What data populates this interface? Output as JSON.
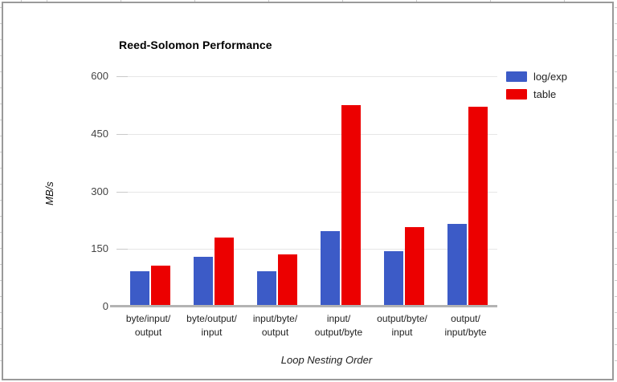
{
  "chart_data": {
    "type": "bar",
    "title": "Reed-Solomon Performance",
    "xlabel": "Loop Nesting Order",
    "ylabel": "MB/s",
    "ylim": [
      0,
      600
    ],
    "yticks": [
      0,
      150,
      300,
      450,
      600
    ],
    "grid": true,
    "legend_position": "right-top",
    "categories": [
      [
        "byte/input/",
        "output"
      ],
      [
        "byte/output/",
        "input"
      ],
      [
        "input/byte/",
        "output"
      ],
      [
        "input/",
        "output/byte"
      ],
      [
        "output/byte/",
        "input"
      ],
      [
        "output/",
        "input/byte"
      ]
    ],
    "series": [
      {
        "name": "log/exp",
        "color": "#3C5BC7",
        "values": [
          92,
          129,
          92,
          197,
          144,
          216
        ]
      },
      {
        "name": "table",
        "color": "#EC0000",
        "values": [
          106,
          179,
          135,
          525,
          207,
          520
        ]
      }
    ]
  },
  "colors": {
    "gridline": "#e6e6e6",
    "axis_baseline": "#b3b3b3",
    "chart_border": "#9a9a9a"
  }
}
